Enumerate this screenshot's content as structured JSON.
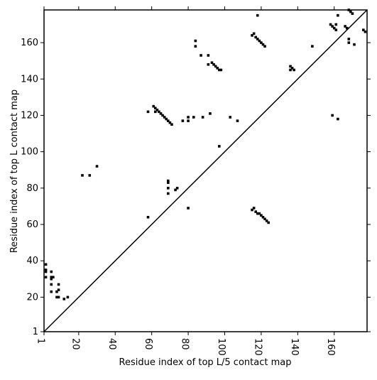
{
  "chart_data": {
    "type": "scatter",
    "x_label": "Residue index of top L/5 contact map",
    "y_label": "Residue index of top L contact map",
    "xlim": [
      1,
      178
    ],
    "ylim": [
      1,
      178
    ],
    "xticks": [
      1,
      20,
      40,
      60,
      80,
      100,
      120,
      140,
      160
    ],
    "yticks": [
      1,
      20,
      40,
      60,
      80,
      100,
      120,
      140,
      160
    ],
    "color": "#000000",
    "diagonal": true,
    "x": [
      2,
      2,
      2,
      2,
      5,
      5,
      5,
      6,
      5,
      5,
      8,
      8,
      9,
      9,
      9,
      12,
      14,
      22,
      26,
      30,
      58,
      58,
      61,
      62,
      62,
      63,
      64,
      65,
      66,
      67,
      68,
      69,
      70,
      71,
      69,
      69,
      69,
      69,
      73,
      74,
      77,
      80,
      80,
      80,
      83,
      84,
      84,
      87,
      88,
      91,
      91,
      92,
      93,
      94,
      95,
      96,
      97,
      98,
      97,
      103,
      107,
      115,
      116,
      117,
      118,
      118,
      119,
      120,
      121,
      122,
      136,
      136,
      137,
      138,
      148,
      158,
      159,
      160,
      161,
      161,
      162,
      166,
      167,
      168,
      169,
      170,
      115,
      116,
      117,
      118,
      119,
      120,
      121,
      122,
      123,
      124,
      159,
      162,
      168,
      168,
      171,
      176,
      177
    ],
    "y": [
      35,
      34,
      38,
      31,
      34,
      31,
      30,
      31,
      23,
      27,
      23,
      20,
      24,
      27,
      20,
      19,
      20,
      87,
      87,
      92,
      64,
      122,
      125,
      124,
      122,
      123,
      122,
      121,
      120,
      119,
      118,
      117,
      116,
      115,
      84,
      83,
      80,
      77,
      79,
      80,
      117,
      117,
      119,
      69,
      119,
      158,
      161,
      153,
      119,
      153,
      148,
      121,
      149,
      148,
      147,
      146,
      145,
      145,
      103,
      119,
      117,
      164,
      165,
      163,
      162,
      175,
      161,
      160,
      159,
      158,
      147,
      145,
      146,
      145,
      158,
      170,
      169,
      168,
      167,
      170,
      175,
      169,
      168,
      178,
      177,
      176,
      68,
      69,
      67,
      66,
      66,
      65,
      64,
      63,
      62,
      61,
      120,
      118,
      160,
      162,
      159,
      167,
      166
    ]
  }
}
